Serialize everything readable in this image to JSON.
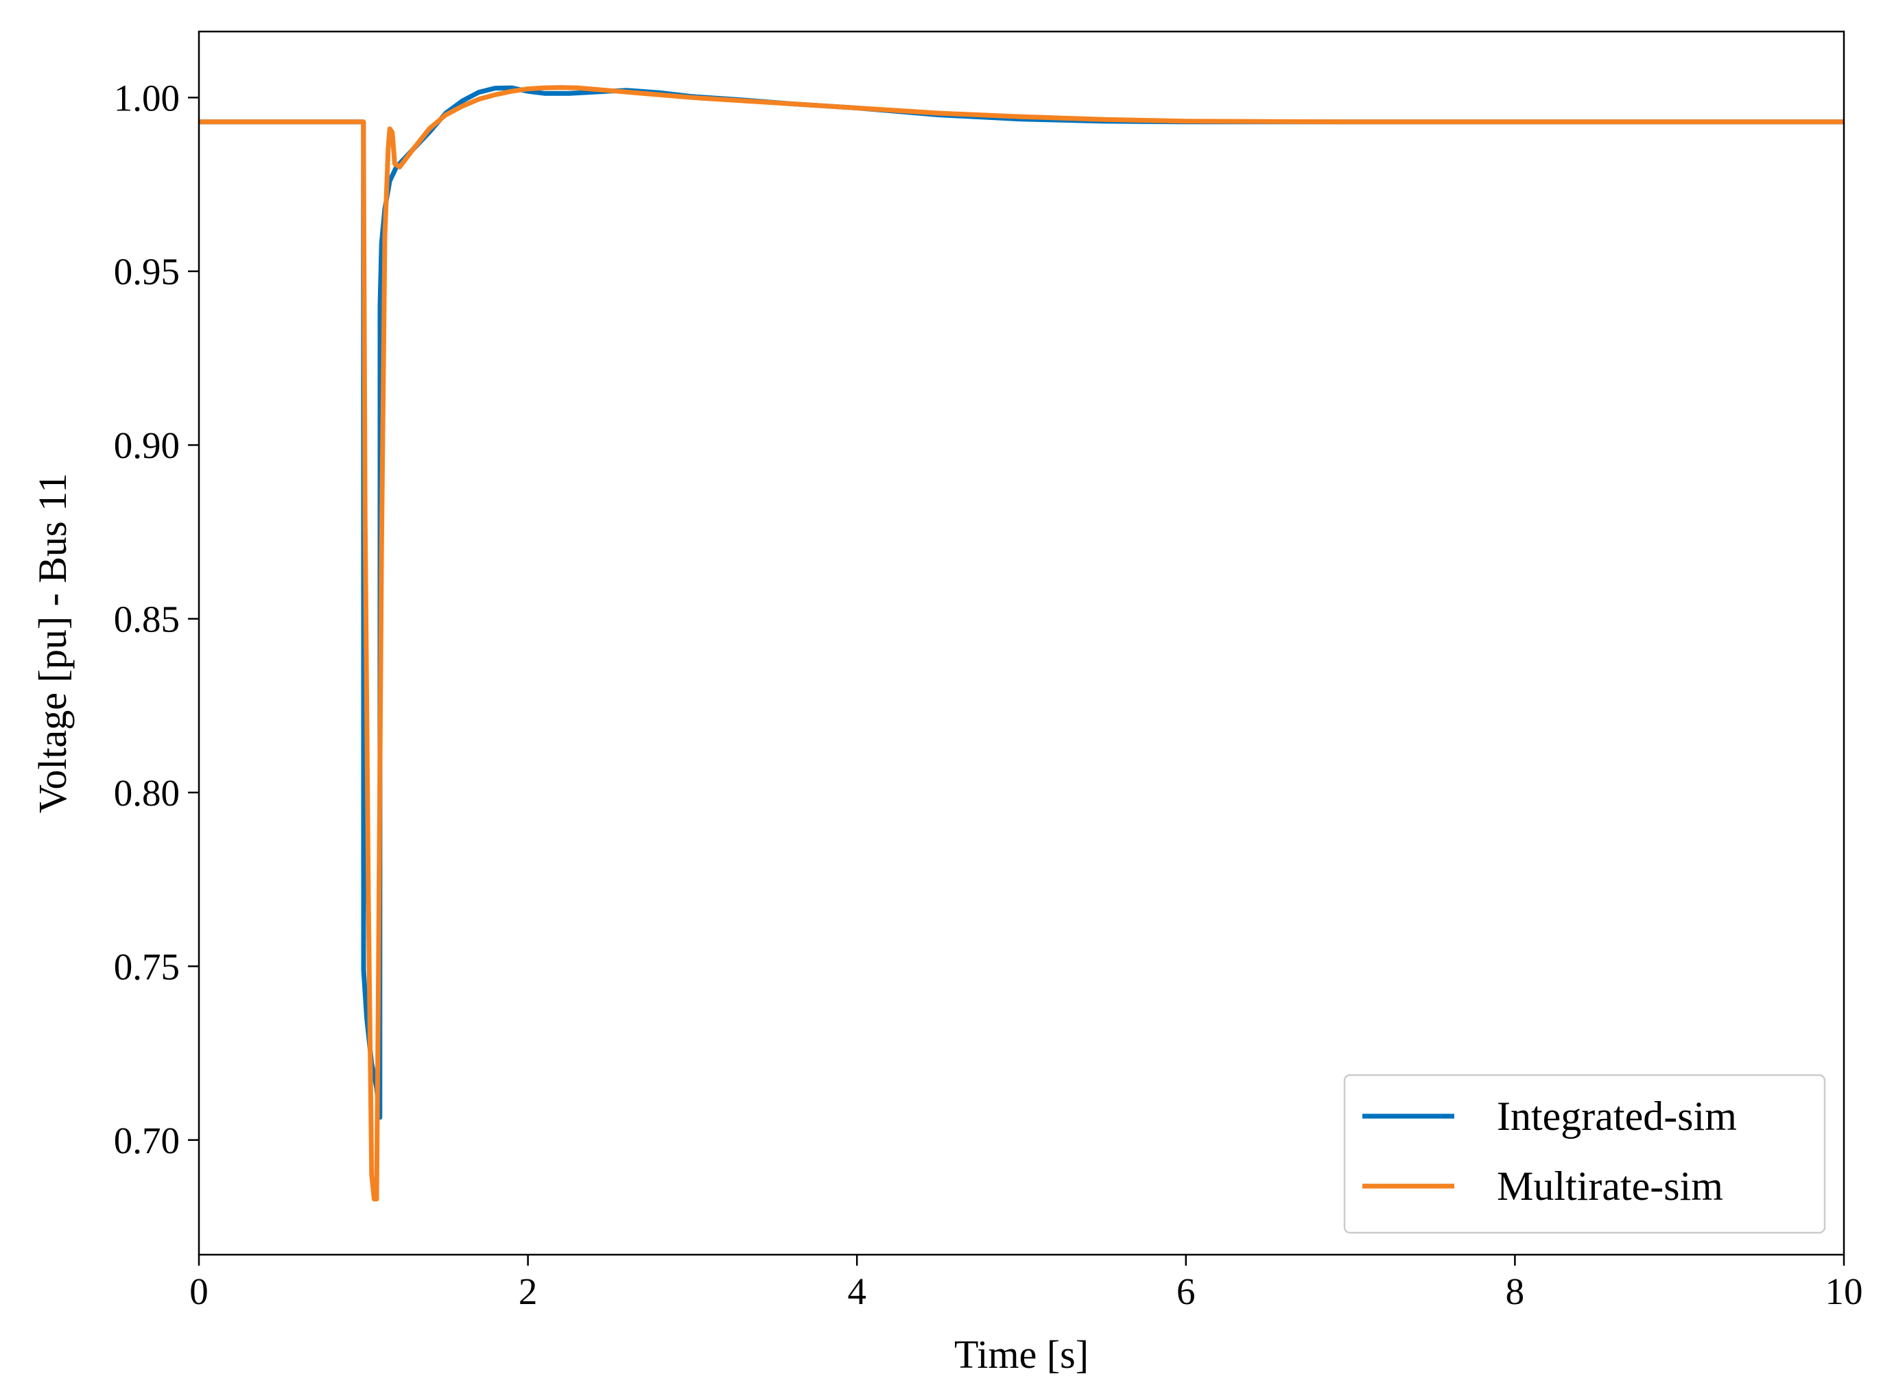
{
  "chart_data": {
    "type": "line",
    "title": "",
    "xlabel": "Time [s]",
    "ylabel": "Voltage [pu] - Bus 11",
    "xlim": [
      0,
      10
    ],
    "ylim": [
      0.667,
      1.019
    ],
    "x_ticks": [
      0,
      2,
      4,
      6,
      8,
      10
    ],
    "x_tick_labels": [
      "0",
      "2",
      "4",
      "6",
      "8",
      "10"
    ],
    "y_ticks": [
      0.7,
      0.75,
      0.8,
      0.85,
      0.9,
      0.95,
      1.0
    ],
    "y_tick_labels": [
      "0.70",
      "0.75",
      "0.80",
      "0.85",
      "0.90",
      "0.95",
      "1.00"
    ],
    "grid": false,
    "legend_position": "lower-right",
    "series": [
      {
        "name": "Integrated-sim",
        "color": "#0072BD",
        "x": [
          0,
          1.0,
          1.001,
          1.02,
          1.05,
          1.08,
          1.1,
          1.101,
          1.11,
          1.13,
          1.16,
          1.2,
          1.3,
          1.4,
          1.5,
          1.6,
          1.7,
          1.8,
          1.9,
          2.0,
          2.1,
          2.25,
          2.4,
          2.6,
          2.8,
          3.0,
          3.3,
          3.6,
          4.0,
          4.5,
          5.0,
          5.5,
          6.0,
          7.0,
          8.0,
          9.0,
          10.0
        ],
        "y": [
          0.993,
          0.993,
          0.749,
          0.735,
          0.722,
          0.715,
          0.7065,
          0.94,
          0.958,
          0.968,
          0.976,
          0.98,
          0.985,
          0.99,
          0.9955,
          0.999,
          1.0015,
          1.0027,
          1.0028,
          1.0018,
          1.0012,
          1.0012,
          1.0016,
          1.0021,
          1.0014,
          1.0003,
          0.9993,
          0.9982,
          0.997,
          0.995,
          0.9938,
          0.9932,
          0.993,
          0.993,
          0.993,
          0.993,
          0.993
        ]
      },
      {
        "name": "Multirate-sim",
        "color": "#F58220",
        "x": [
          0,
          1.0,
          1.01,
          1.03,
          1.05,
          1.065,
          1.08,
          1.09,
          1.11,
          1.13,
          1.15,
          1.16,
          1.175,
          1.19,
          1.22,
          1.3,
          1.4,
          1.5,
          1.6,
          1.7,
          1.8,
          1.9,
          2.0,
          2.1,
          2.2,
          2.3,
          2.5,
          2.7,
          3.0,
          3.5,
          4.0,
          4.5,
          5.0,
          5.5,
          6.0,
          7.0,
          8.0,
          9.0,
          10.0
        ],
        "y": [
          0.993,
          0.993,
          0.88,
          0.77,
          0.69,
          0.683,
          0.683,
          0.74,
          0.87,
          0.96,
          0.985,
          0.991,
          0.99,
          0.981,
          0.98,
          0.985,
          0.991,
          0.995,
          0.9975,
          0.9995,
          1.0008,
          1.0018,
          1.0025,
          1.0028,
          1.0029,
          1.0028,
          1.002,
          1.0012,
          1.0,
          0.9985,
          0.997,
          0.9955,
          0.9945,
          0.9937,
          0.9932,
          0.993,
          0.993,
          0.993,
          0.993
        ]
      }
    ]
  }
}
